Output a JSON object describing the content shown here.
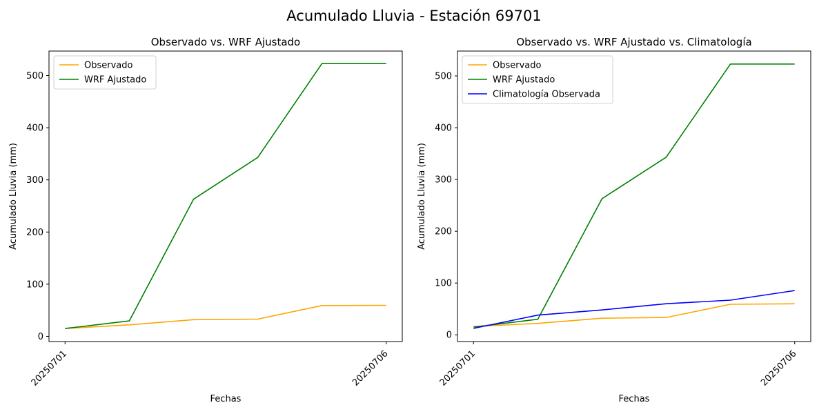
{
  "figure": {
    "suptitle": "Acumulado Lluvia - Estación 69701"
  },
  "chart_data": [
    {
      "type": "line",
      "title": "Observado vs. WRF Ajustado",
      "xlabel": "Fechas",
      "ylabel": "Acumulado Lluvia (mm)",
      "x": [
        1,
        2,
        3,
        4,
        5,
        6
      ],
      "xticks": [
        1,
        6
      ],
      "xtick_labels": [
        "20250701",
        "20250706"
      ],
      "xlim": [
        0.75,
        6.25
      ],
      "yticks": [
        0,
        100,
        200,
        300,
        400,
        500
      ],
      "ylim": [
        -10,
        547
      ],
      "legend_position": "upper left",
      "grid": false,
      "series": [
        {
          "name": "Observado",
          "color": "#ffa500",
          "values": [
            15,
            22,
            32,
            33,
            59,
            59.5
          ]
        },
        {
          "name": "WRF Ajustado",
          "color": "#008000",
          "values": [
            15,
            29.5,
            263,
            343,
            523,
            523
          ]
        }
      ]
    },
    {
      "type": "line",
      "title": "Observado vs. WRF Ajustado vs. Climatología",
      "xlabel": "Fechas",
      "ylabel": "Acumulado Lluvia (mm)",
      "x": [
        1,
        2,
        3,
        4,
        5,
        6
      ],
      "xticks": [
        1,
        6
      ],
      "xtick_labels": [
        "20250701",
        "20250706"
      ],
      "xlim": [
        0.75,
        6.25
      ],
      "yticks": [
        0,
        100,
        200,
        300,
        400,
        500
      ],
      "ylim": [
        -13,
        548
      ],
      "legend_position": "upper left",
      "grid": false,
      "series": [
        {
          "name": "Observado",
          "color": "#ffa500",
          "values": [
            16,
            22,
            32,
            33.5,
            59,
            60
          ]
        },
        {
          "name": "WRF Ajustado",
          "color": "#008000",
          "values": [
            15,
            30,
            263,
            343,
            523,
            523
          ]
        },
        {
          "name": "Climatología Observada",
          "color": "#0000ff",
          "values": [
            12.5,
            38,
            48,
            60,
            67,
            85.5
          ]
        }
      ]
    }
  ]
}
